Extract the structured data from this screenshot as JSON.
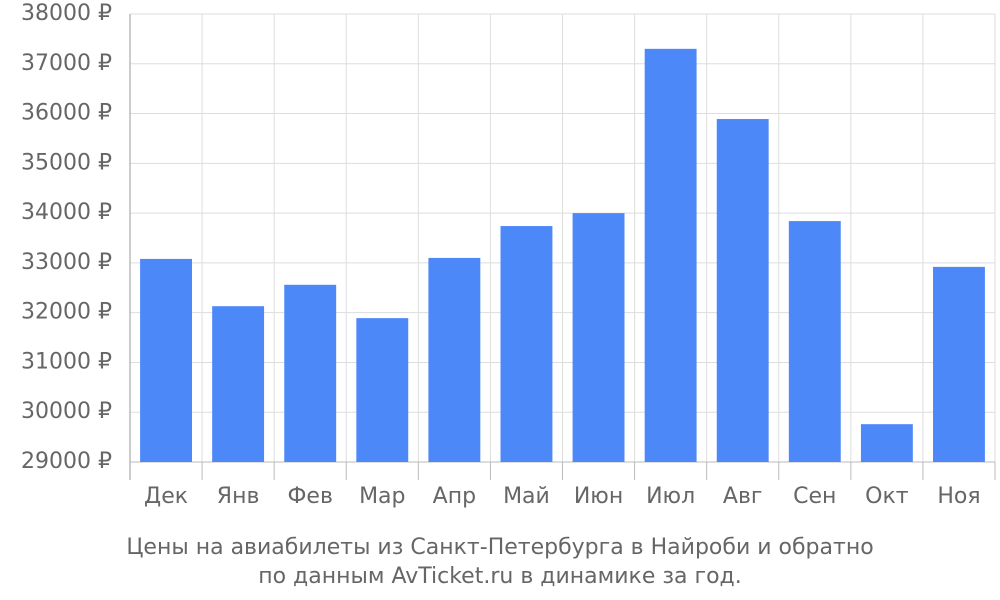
{
  "chart_data": {
    "type": "bar",
    "title": "Цены на авиабилеты из Санкт-Петербурга в Найроби и обратно",
    "subtitle": "по данным AvTicket.ru в динамике за год.",
    "categories": [
      "Дек",
      "Янв",
      "Фев",
      "Мар",
      "Апр",
      "Май",
      "Июн",
      "Июл",
      "Авг",
      "Сен",
      "Окт",
      "Ноя"
    ],
    "values": [
      33080,
      32130,
      32560,
      31890,
      33100,
      33740,
      34000,
      37300,
      35890,
      33840,
      29760,
      32920
    ],
    "color": "#4d88f9",
    "ylim": [
      29000,
      38000
    ],
    "yticks": [
      {
        "value": 29000,
        "label": "29000 ₽"
      },
      {
        "value": 30000,
        "label": "30000 ₽"
      },
      {
        "value": 31000,
        "label": "31000 ₽"
      },
      {
        "value": 32000,
        "label": "32000 ₽"
      },
      {
        "value": 33000,
        "label": "33000 ₽"
      },
      {
        "value": 34000,
        "label": "34000 ₽"
      },
      {
        "value": 35000,
        "label": "35000 ₽"
      },
      {
        "value": 36000,
        "label": "36000 ₽"
      },
      {
        "value": 37000,
        "label": "37000 ₽"
      },
      {
        "value": 38000,
        "label": "38000 ₽"
      }
    ],
    "grid": true
  }
}
